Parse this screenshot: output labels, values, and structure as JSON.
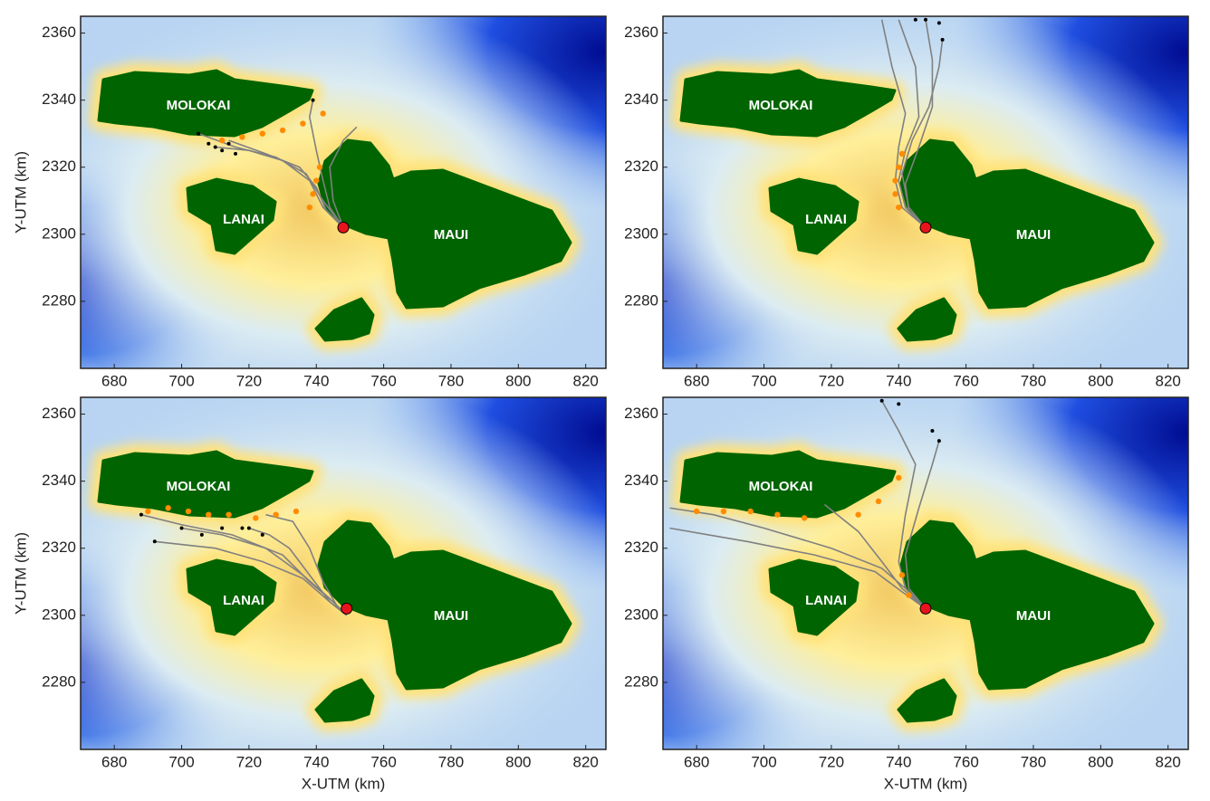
{
  "chart_data": [
    {
      "type": "map",
      "xlim": [
        670,
        826
      ],
      "ylim": [
        2260,
        2365
      ],
      "xticks": [
        680,
        700,
        720,
        740,
        760,
        780,
        800,
        820
      ],
      "yticks": [
        2280,
        2300,
        2320,
        2340,
        2360
      ],
      "ylabel": "Y-UTM (km)",
      "annotations": [
        "MOLOKAI",
        "LANAI",
        "MAUI"
      ],
      "tracks": {
        "color": "#808080",
        "lines": [
          {
            "x": [
              748,
              742,
              738,
              730,
              720,
              710
            ],
            "y": [
              2302,
              2308,
              2316,
              2322,
              2325,
              2326
            ]
          },
          {
            "x": [
              748,
              743,
              740,
              735,
              725,
              714
            ],
            "y": [
              2302,
              2307,
              2314,
              2320,
              2324,
              2328
            ]
          },
          {
            "x": [
              748,
              744,
              742,
              740,
              738,
              739
            ],
            "y": [
              2302,
              2308,
              2316,
              2325,
              2335,
              2340
            ]
          },
          {
            "x": [
              748,
              742,
              737,
              728,
              716,
              705
            ],
            "y": [
              2302,
              2310,
              2318,
              2323,
              2326,
              2330
            ]
          },
          {
            "x": [
              748,
              745,
              744,
              748,
              752
            ],
            "y": [
              2302,
              2310,
              2320,
              2328,
              2332
            ]
          }
        ]
      },
      "beached": {
        "color": "#ff8c00",
        "x": [
          712,
          718,
          724,
          730,
          736,
          742,
          741,
          740,
          739,
          738
        ],
        "y": [
          2328,
          2329,
          2330,
          2331,
          2333,
          2336,
          2320,
          2316,
          2312,
          2308
        ]
      },
      "endpoints": {
        "color": "#000000",
        "x": [
          705,
          708,
          710,
          712,
          714,
          716,
          739
        ],
        "y": [
          2330,
          2327,
          2326,
          2325,
          2327,
          2324,
          2340
        ]
      },
      "source": {
        "color": "#e8141c",
        "x": 748,
        "y": 2302
      }
    },
    {
      "type": "map",
      "xlim": [
        670,
        826
      ],
      "ylim": [
        2260,
        2365
      ],
      "xticks": [
        680,
        700,
        720,
        740,
        760,
        780,
        800,
        820
      ],
      "yticks": [
        2280,
        2300,
        2320,
        2340,
        2360
      ],
      "annotations": [
        "MOLOKAI",
        "LANAI",
        "MAUI"
      ],
      "tracks": {
        "color": "#808080",
        "lines": [
          {
            "x": [
              748,
              742,
              740,
              742,
              746,
              745,
              740
            ],
            "y": [
              2302,
              2308,
              2316,
              2325,
              2335,
              2350,
              2364
            ]
          },
          {
            "x": [
              748,
              743,
              741,
              744,
              749,
              752,
              753
            ],
            "y": [
              2302,
              2308,
              2318,
              2328,
              2338,
              2350,
              2358
            ]
          },
          {
            "x": [
              748,
              741,
              739,
              740,
              742,
              738,
              735
            ],
            "y": [
              2302,
              2308,
              2316,
              2326,
              2336,
              2350,
              2364
            ]
          },
          {
            "x": [
              748,
              743,
              742,
              746,
              750,
              750,
              748
            ],
            "y": [
              2302,
              2307,
              2315,
              2326,
              2338,
              2352,
              2364
            ]
          }
        ]
      },
      "beached": {
        "color": "#ff8c00",
        "x": [
          740,
          739,
          739,
          740,
          741
        ],
        "y": [
          2308,
          2312,
          2316,
          2320,
          2324
        ]
      },
      "endpoints": {
        "color": "#000000",
        "x": [
          745,
          748,
          752,
          753
        ],
        "y": [
          2364,
          2364,
          2363,
          2358
        ]
      },
      "source": {
        "color": "#e8141c",
        "x": 748,
        "y": 2302
      }
    },
    {
      "type": "map",
      "xlim": [
        670,
        826
      ],
      "ylim": [
        2260,
        2365
      ],
      "xticks": [
        680,
        700,
        720,
        740,
        760,
        780,
        800,
        820
      ],
      "yticks": [
        2280,
        2300,
        2320,
        2340,
        2360
      ],
      "xlabel": "X-UTM (km)",
      "ylabel": "Y-UTM (km)",
      "annotations": [
        "MOLOKAI",
        "LANAI",
        "MAUI"
      ],
      "tracks": {
        "color": "#808080",
        "lines": [
          {
            "x": [
              749,
              745,
              738,
              730,
              715,
              700,
              688
            ],
            "y": [
              2300,
              2304,
              2310,
              2318,
              2324,
              2327,
              2330
            ]
          },
          {
            "x": [
              749,
              744,
              736,
              725,
              712,
              700
            ],
            "y": [
              2300,
              2305,
              2312,
              2320,
              2324,
              2326
            ]
          },
          {
            "x": [
              749,
              744,
              738,
              732,
              726,
              720
            ],
            "y": [
              2300,
              2304,
              2312,
              2320,
              2324,
              2326
            ]
          },
          {
            "x": [
              749,
              746,
              742,
              738,
              733,
              725
            ],
            "y": [
              2300,
              2303,
              2310,
              2320,
              2328,
              2330
            ]
          },
          {
            "x": [
              749,
              744,
              736,
              724,
              710,
              692
            ],
            "y": [
              2300,
              2304,
              2311,
              2316,
              2320,
              2322
            ]
          }
        ]
      },
      "beached": {
        "color": "#ff8c00",
        "x": [
          690,
          696,
          702,
          708,
          714,
          722,
          728,
          734
        ],
        "y": [
          2331,
          2332,
          2331,
          2330,
          2330,
          2329,
          2330,
          2331
        ]
      },
      "endpoints": {
        "color": "#000000",
        "x": [
          688,
          692,
          700,
          706,
          712,
          718,
          720,
          724
        ],
        "y": [
          2330,
          2322,
          2326,
          2324,
          2326,
          2326,
          2326,
          2324
        ]
      },
      "source": {
        "color": "#e8141c",
        "x": 749,
        "y": 2302
      }
    },
    {
      "type": "map",
      "xlim": [
        670,
        826
      ],
      "ylim": [
        2260,
        2365
      ],
      "xticks": [
        680,
        700,
        720,
        740,
        760,
        780,
        800,
        820
      ],
      "yticks": [
        2280,
        2300,
        2320,
        2340,
        2360
      ],
      "xlabel": "X-UTM (km)",
      "annotations": [
        "MOLOKAI",
        "LANAI",
        "MAUI"
      ],
      "tracks": {
        "color": "#808080",
        "lines": [
          {
            "x": [
              748,
              742,
              735,
              720,
              700,
              685,
              672
            ],
            "y": [
              2302,
              2308,
              2314,
              2320,
              2326,
              2330,
              2332
            ]
          },
          {
            "x": [
              748,
              741,
              733,
              715,
              695,
              672
            ],
            "y": [
              2302,
              2307,
              2313,
              2318,
              2322,
              2326
            ]
          },
          {
            "x": [
              748,
              742,
              740,
              742,
              745,
              740,
              735
            ],
            "y": [
              2302,
              2308,
              2316,
              2330,
              2345,
              2355,
              2364
            ]
          },
          {
            "x": [
              748,
              743,
              742,
              746,
              750,
              752
            ],
            "y": [
              2302,
              2308,
              2318,
              2332,
              2345,
              2352
            ]
          },
          {
            "x": [
              748,
              741,
              735,
              728,
              718
            ],
            "y": [
              2302,
              2308,
              2316,
              2325,
              2333
            ]
          }
        ]
      },
      "beached": {
        "color": "#ff8c00",
        "x": [
          680,
          688,
          696,
          704,
          712,
          728,
          734,
          740,
          741,
          743
        ],
        "y": [
          2331,
          2331,
          2331,
          2330,
          2329,
          2330,
          2334,
          2341,
          2312,
          2306
        ]
      },
      "endpoints": {
        "color": "#000000",
        "x": [
          735,
          740,
          750,
          752
        ],
        "y": [
          2364,
          2363,
          2355,
          2352
        ]
      },
      "source": {
        "color": "#e8141c",
        "x": 748,
        "y": 2302
      }
    }
  ]
}
